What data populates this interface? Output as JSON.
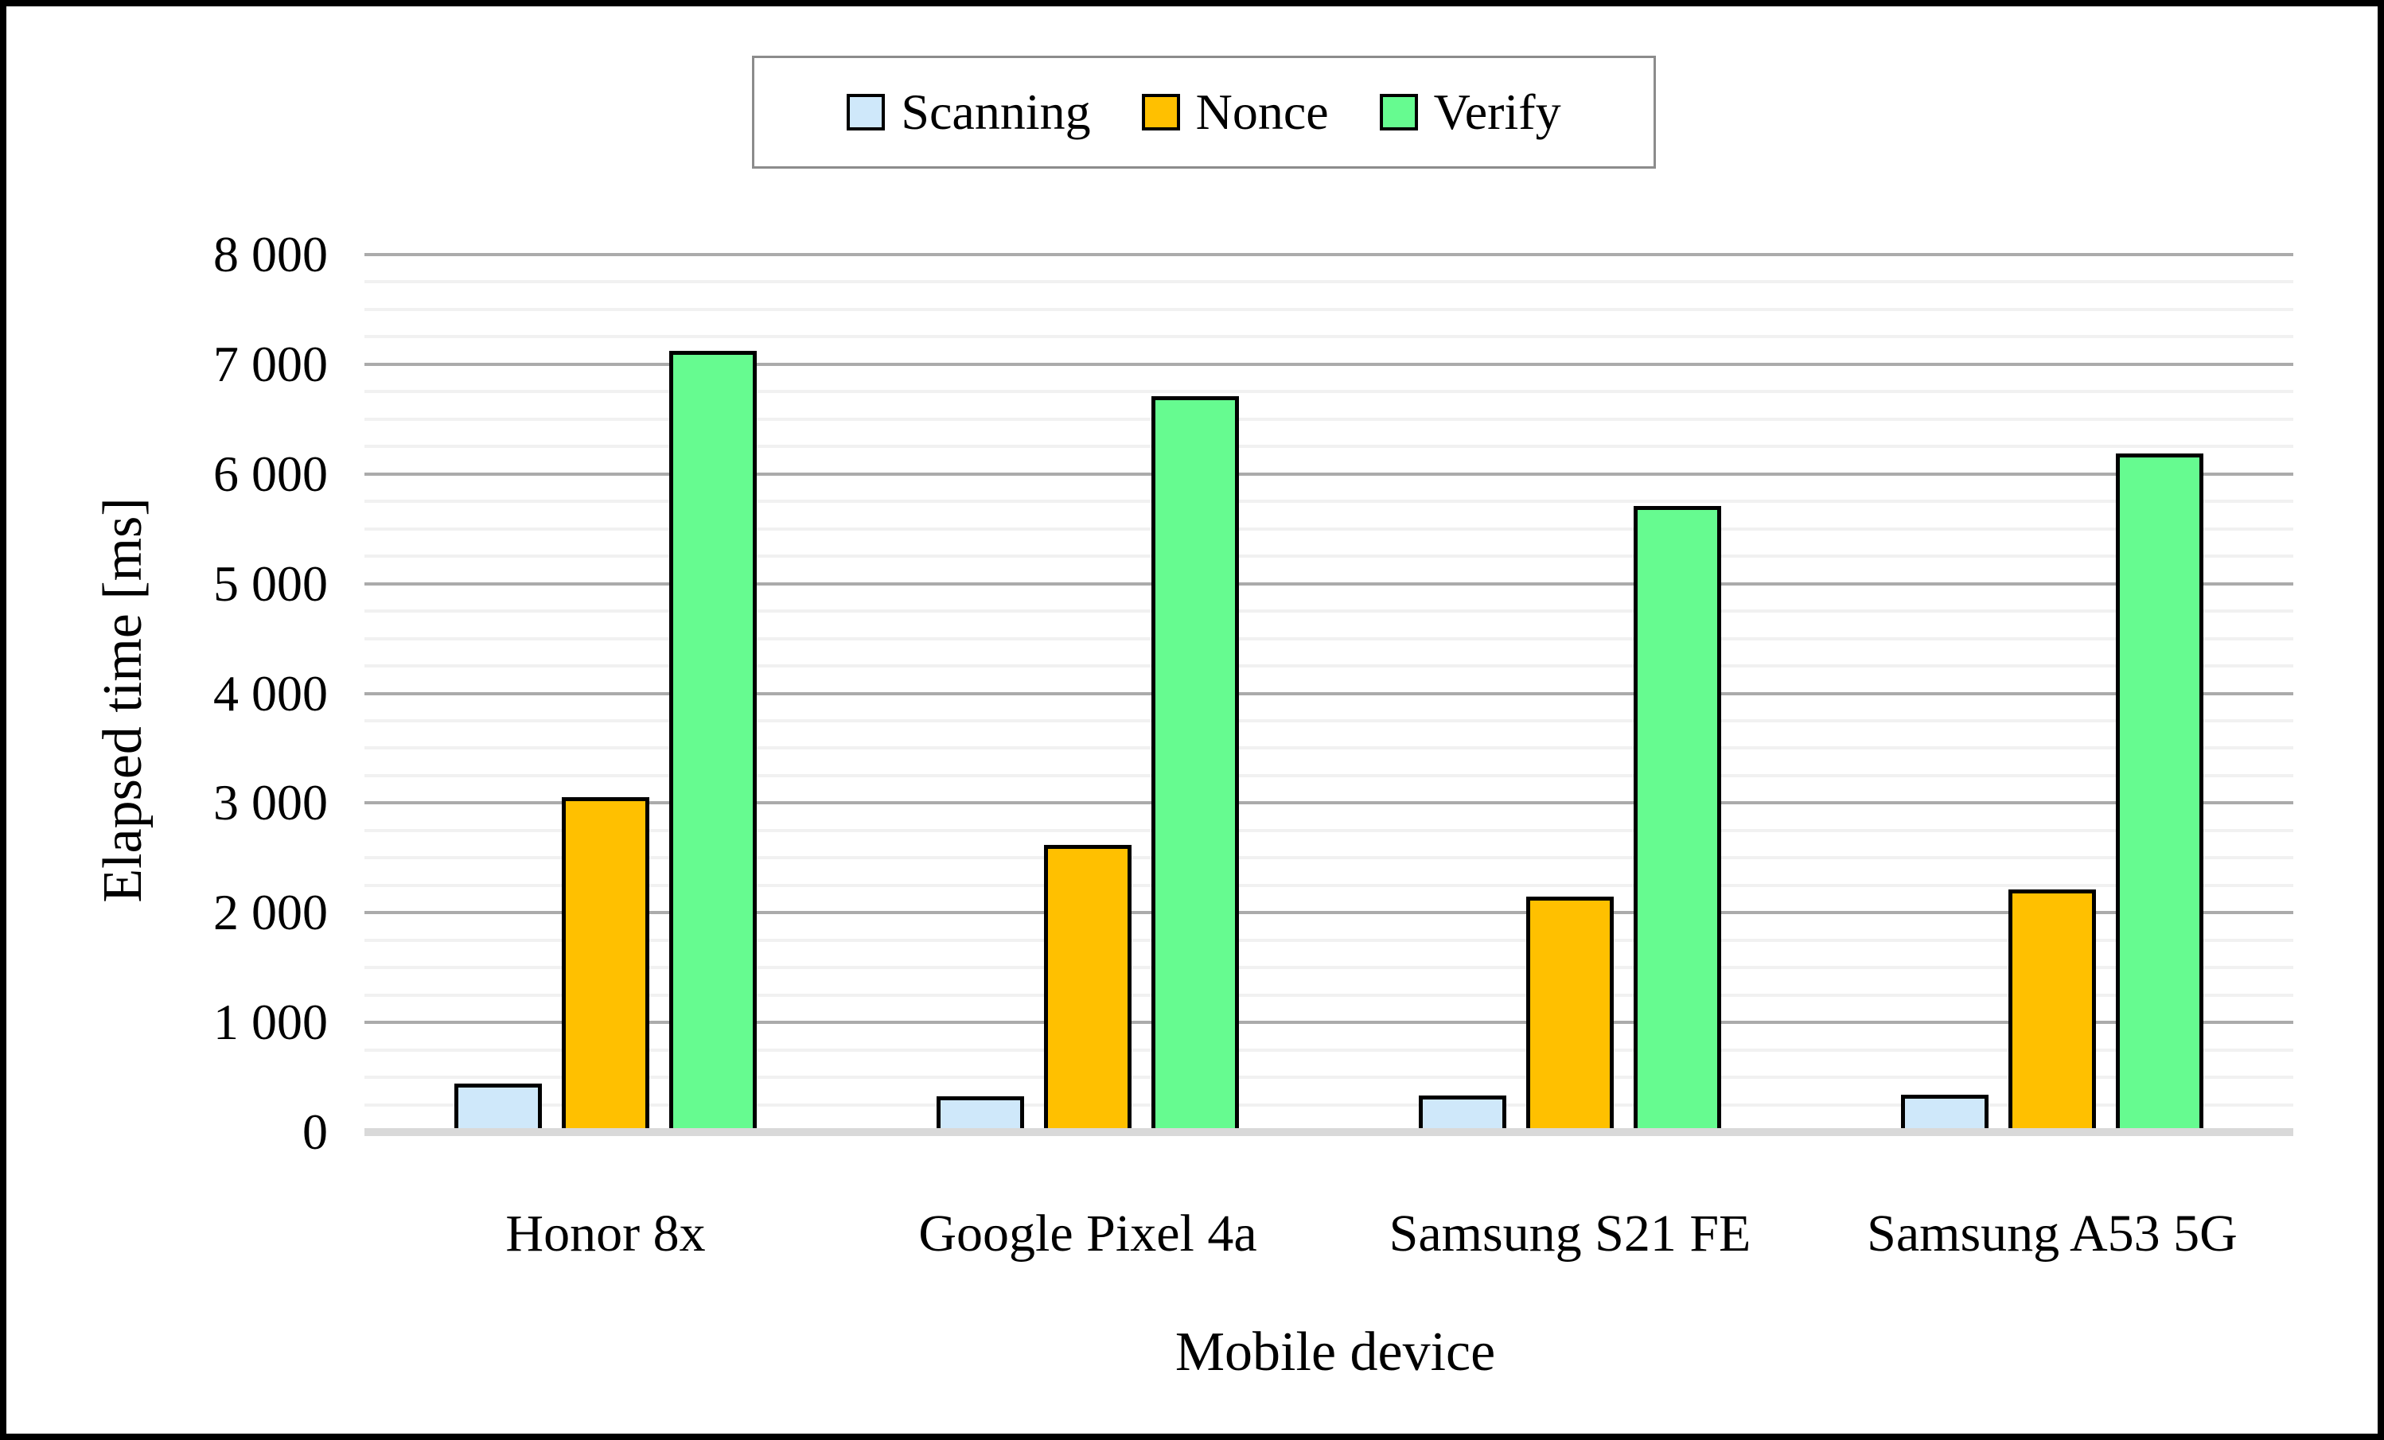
{
  "figure": {
    "background": "#ffffff",
    "border_color": "#000000"
  },
  "legend": {
    "position": "top center",
    "border_color": "#8c8c8c",
    "items": [
      {
        "label": "Scanning",
        "color": "#cfe8fa"
      },
      {
        "label": "Nonce",
        "color": "#ffc000"
      },
      {
        "label": "Verify",
        "color": "#66fb90"
      }
    ]
  },
  "chart_data": {
    "type": "bar",
    "title": "",
    "xlabel": "Mobile device",
    "ylabel": "Elapsed time [ms]",
    "categories": [
      "Honor 8x",
      "Google Pixel 4a",
      "Samsung S21 FE",
      "Samsung A53 5G"
    ],
    "series": [
      {
        "name": "Scanning",
        "color": "#cfe8fa",
        "values": [
          445,
          325,
          333,
          340
        ]
      },
      {
        "name": "Nonce",
        "color": "#ffc000",
        "values": [
          3050,
          2620,
          2150,
          2215
        ]
      },
      {
        "name": "Verify",
        "color": "#66fb90",
        "values": [
          7120,
          6710,
          5705,
          6190
        ]
      }
    ],
    "ylim": [
      0,
      8000
    ],
    "ytick_interval": 1000,
    "yminor_interval": 250,
    "ytick_labels": [
      "0",
      "1 000",
      "2 000",
      "3 000",
      "4 000",
      "5 000",
      "6 000",
      "7 000",
      "8 000"
    ],
    "grid": "horizontal, major and minor lines",
    "grid_colors": {
      "major": "#ababab",
      "minor": "#f1f1f1",
      "axis_baseline": "#d9d9d9"
    },
    "bar_border_color": "#000000",
    "legend_position": "top center"
  }
}
